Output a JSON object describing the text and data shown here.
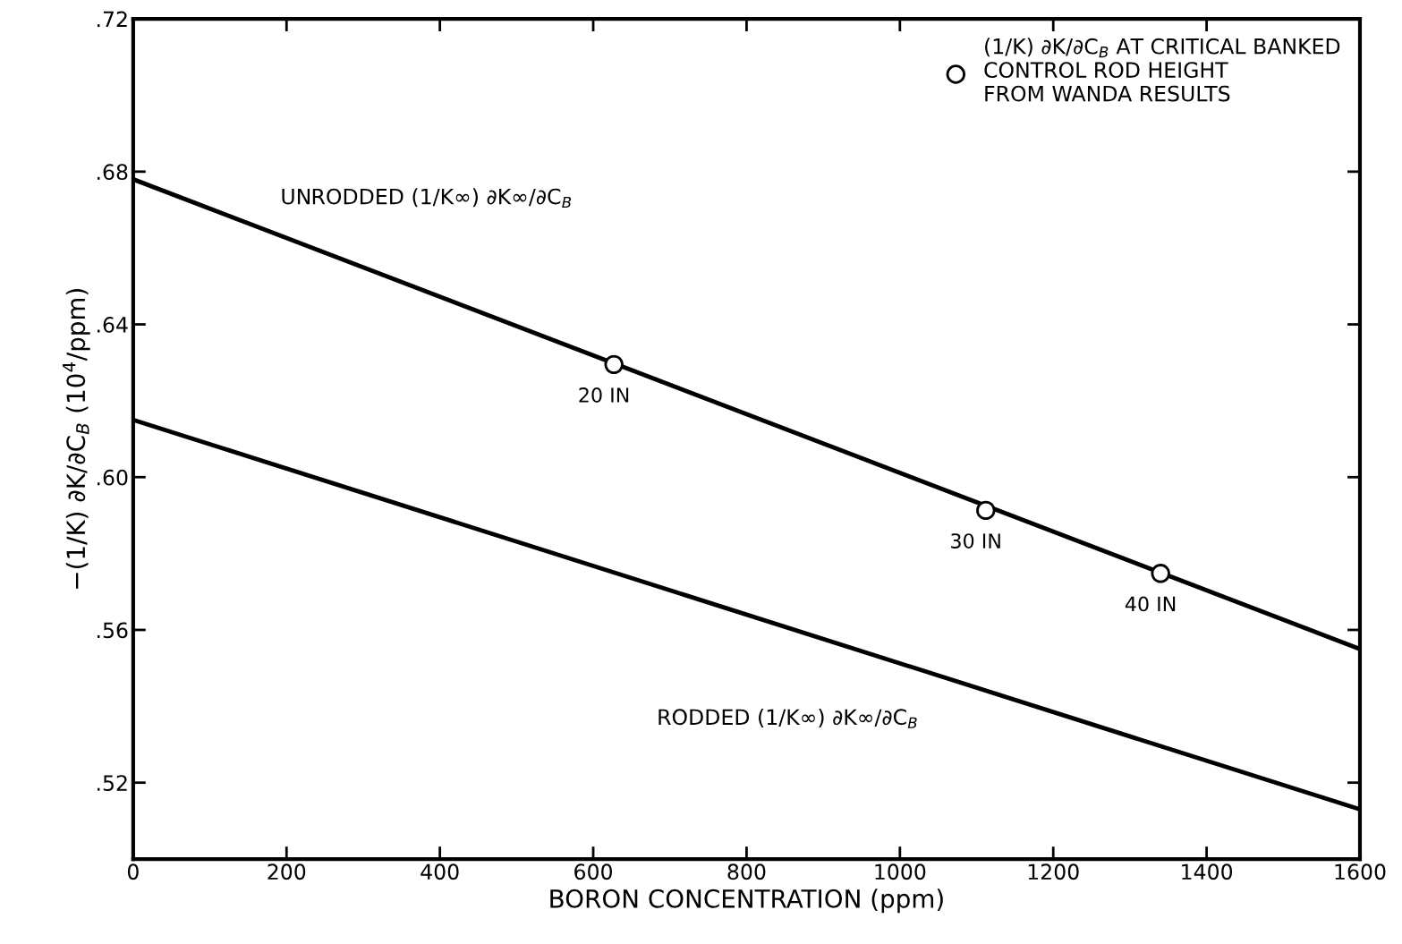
{
  "chart_data": {
    "type": "line",
    "xlabel": "BORON CONCENTRATION (ppm)",
    "ylabel": "−(1/K) ∂K/∂C$_{B}$ (10$^{4}$/ppm)",
    "xlim": [
      0,
      1600
    ],
    "xticks": [
      0,
      200,
      400,
      600,
      800,
      1000,
      1200,
      1400,
      1600
    ],
    "ylim": [
      0.5,
      0.72
    ],
    "yticks": [
      {
        "value": 0.52,
        "label": ".52"
      },
      {
        "value": 0.56,
        "label": ".56"
      },
      {
        "value": 0.6,
        "label": ".60"
      },
      {
        "value": 0.64,
        "label": ".64"
      },
      {
        "value": 0.68,
        "label": ".68"
      },
      {
        "value": 0.72,
        "label": ".72"
      }
    ],
    "grid": false,
    "legend": "top right",
    "series": [
      {
        "name": "UNRODDED (1/K∞) ∂K∞/∂C$_{B}$",
        "color": "#000000",
        "x": [
          0,
          1600
        ],
        "values": [
          0.678,
          0.555
        ]
      },
      {
        "name": "RODDED (1/K∞) ∂K∞/∂C$_{B}$",
        "color": "#000000",
        "x": [
          0,
          1600
        ],
        "values": [
          0.615,
          0.513
        ]
      },
      {
        "name": "(1/K) ∂K/∂C$_{B}$ AT CRITICAL BANKED\nCONTROL ROD HEIGHT\nFROM WANDA RESULTS",
        "type": "scatter",
        "marker": "circle",
        "color": "#000000",
        "x": [
          627,
          1112,
          1340
        ],
        "values": [
          0.6295,
          0.5913,
          0.5748
        ]
      }
    ],
    "annotations": [
      {
        "text": "20 IN",
        "x": 627,
        "y": 0.6295
      },
      {
        "text": "30 IN",
        "x": 1112,
        "y": 0.5913
      },
      {
        "text": "40 IN",
        "x": 1340,
        "y": 0.5748
      }
    ]
  }
}
